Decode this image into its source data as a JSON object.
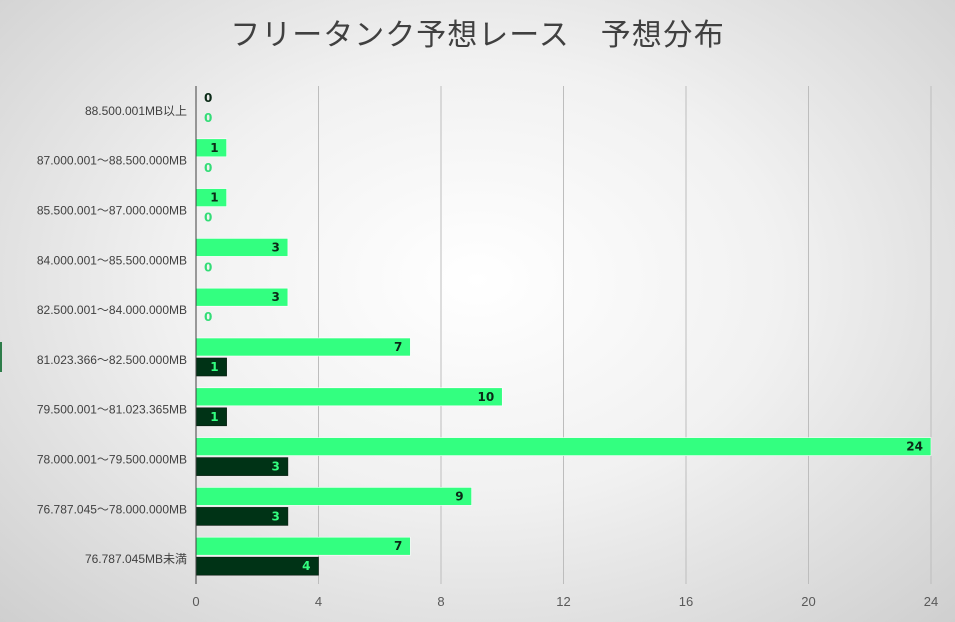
{
  "chart_data": {
    "type": "bar",
    "orientation": "horizontal",
    "title": "フリータンク予想レース　予想分布",
    "categories": [
      "88.500.001MB以上",
      "87.000.001～88.500.000MB",
      "85.500.001～87.000.000MB",
      "84.000.001～85.500.000MB",
      "82.500.001～84.000.000MB",
      "81.023.366～82.500.000MB",
      "79.500.001～81.023.365MB",
      "78.000.001～79.500.000MB",
      "76.787.045～78.000.000MB",
      "76.787.045MB未満"
    ],
    "series": [
      {
        "values": [
          0,
          1,
          1,
          3,
          3,
          7,
          10,
          24,
          9,
          7
        ],
        "color": "#33ff80"
      },
      {
        "values": [
          0,
          0,
          0,
          0,
          0,
          1,
          1,
          3,
          3,
          4
        ],
        "color": "#003316"
      }
    ],
    "xlim": [
      0,
      24
    ],
    "xticks": [
      0,
      4,
      8,
      12,
      16,
      20,
      24
    ],
    "grid": true,
    "legend": "none"
  }
}
